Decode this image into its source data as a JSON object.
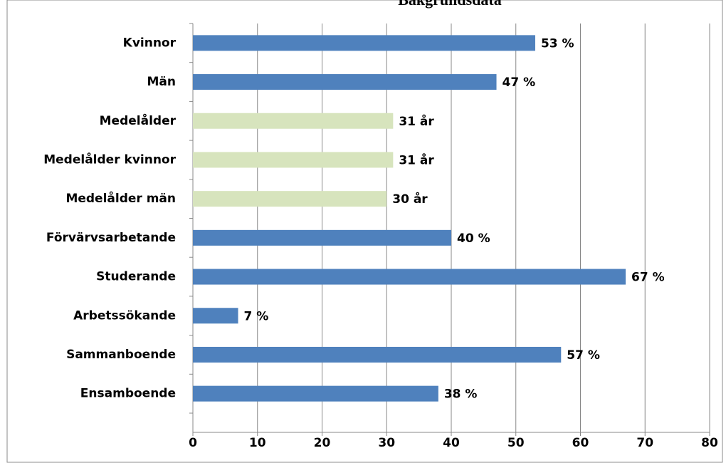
{
  "chart_data": {
    "type": "bar",
    "orientation": "horizontal",
    "title": "Bakgrundsdata",
    "categories": [
      "Kvinnor",
      "Män",
      "Medelålder",
      "Medelålder kvinnor",
      "Medelålder män",
      "Förvärvsarbetande",
      "Studerande",
      "Arbetssökande",
      "Sammanboende",
      "Ensamboende"
    ],
    "values": [
      53,
      47,
      31,
      31,
      30,
      40,
      67,
      7,
      57,
      38
    ],
    "value_labels": [
      "53 %",
      "47 %",
      "31 år",
      "31 år",
      "30 år",
      "40 %",
      "67 %",
      "7 %",
      "57 %",
      "38 %"
    ],
    "colors": [
      "#4f81bd",
      "#4f81bd",
      "#d7e4bd",
      "#d7e4bd",
      "#d7e4bd",
      "#4f81bd",
      "#4f81bd",
      "#4f81bd",
      "#4f81bd",
      "#4f81bd"
    ],
    "xlim": [
      0,
      80
    ],
    "xticks": [
      0,
      10,
      20,
      30,
      40,
      50,
      60,
      70,
      80
    ],
    "grid": true
  }
}
